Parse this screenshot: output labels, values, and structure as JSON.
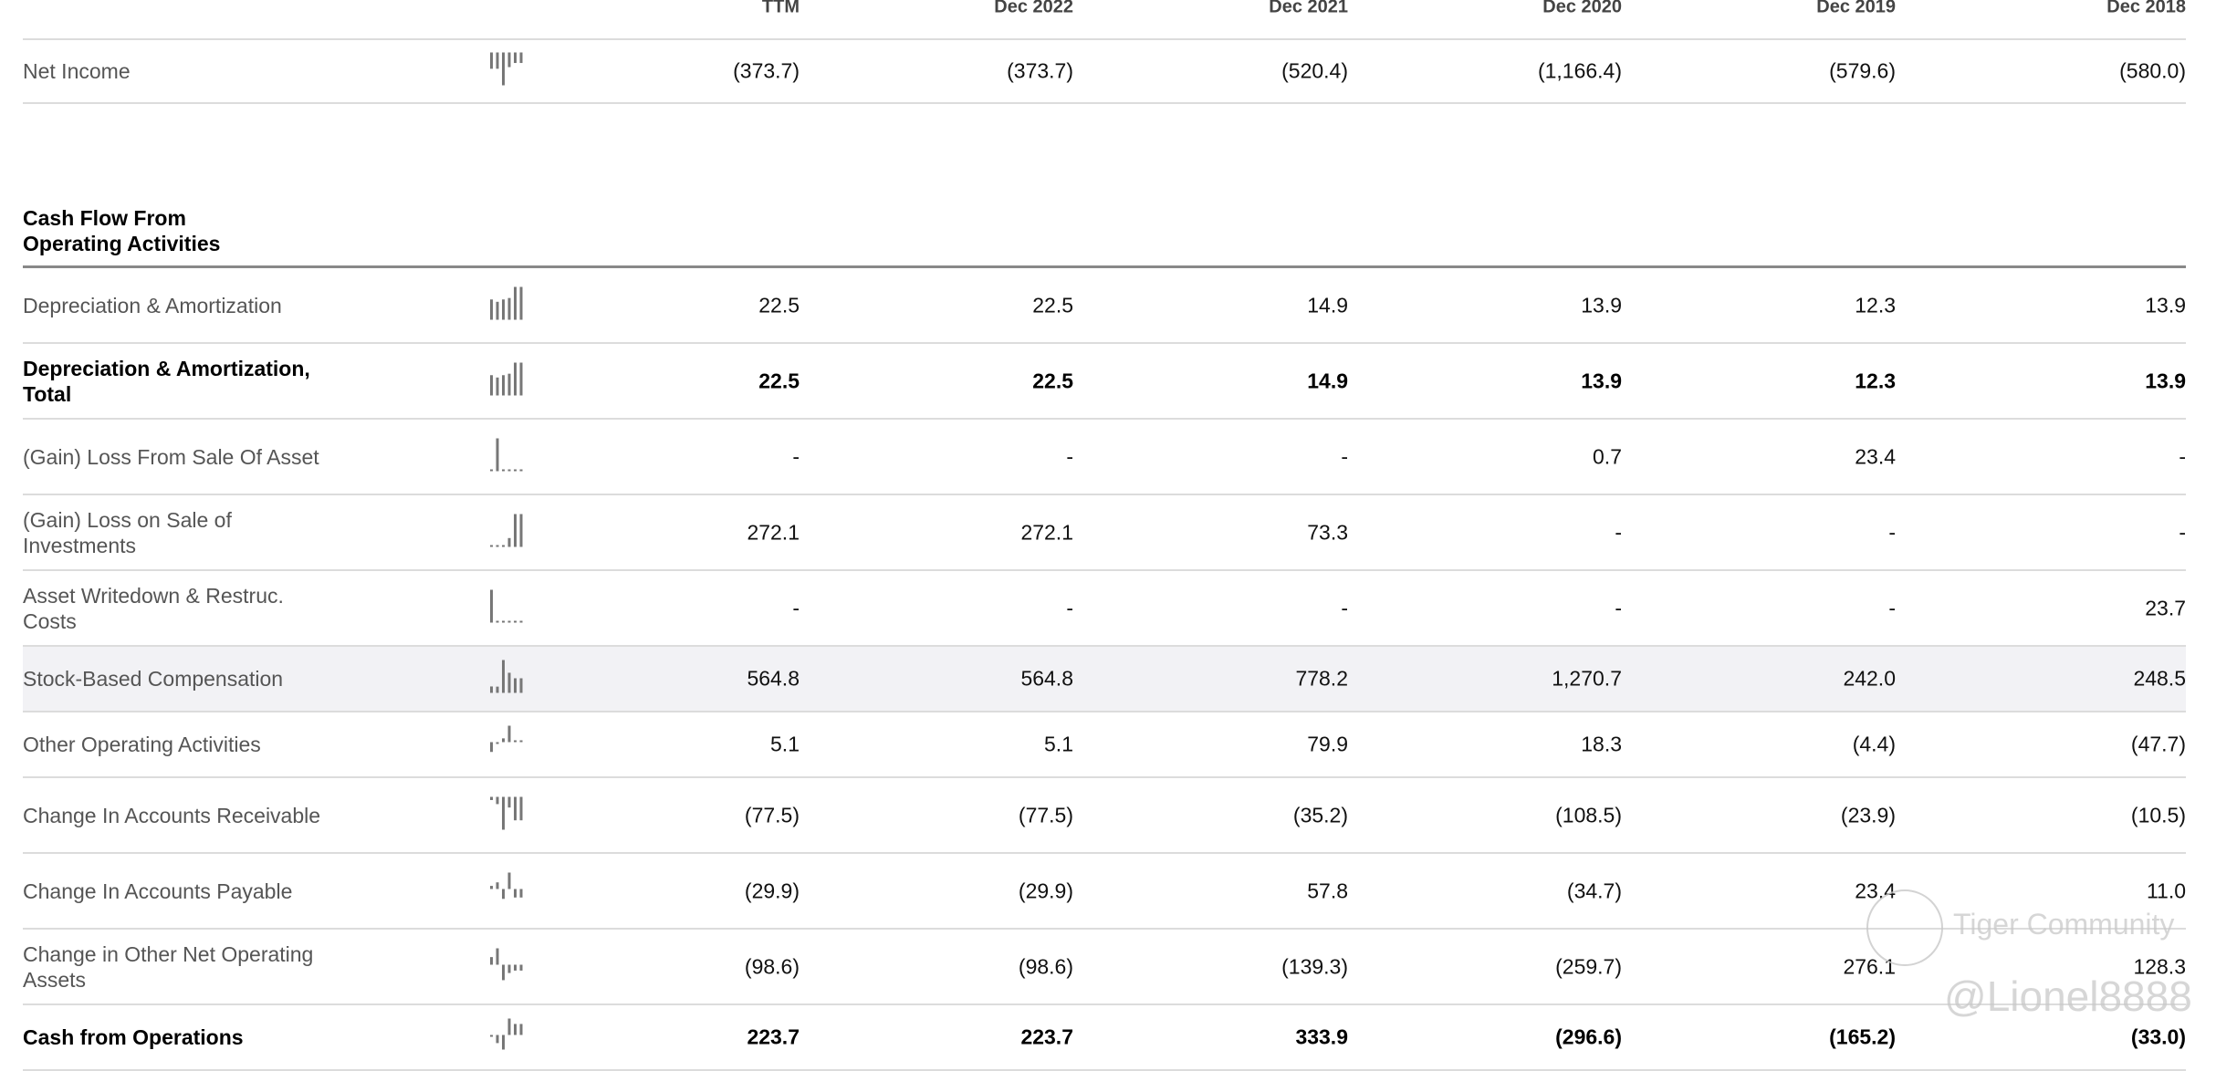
{
  "columns": [
    "TTM",
    "Dec 2022",
    "Dec 2021",
    "Dec 2020",
    "Dec 2019",
    "Dec 2018"
  ],
  "net_income": {
    "label": "Net Income",
    "values": [
      "(373.7)",
      "(373.7)",
      "(520.4)",
      "(1,166.4)",
      "(579.6)",
      "(580.0)"
    ]
  },
  "section_title": "Cash Flow From Operating Activities",
  "rows": [
    {
      "label": "Depreciation & Amortization",
      "bold": false,
      "values": [
        "22.5",
        "22.5",
        "14.9",
        "13.9",
        "12.3",
        "13.9"
      ]
    },
    {
      "label": "Depreciation & Amortization, Total",
      "bold": true,
      "values": [
        "22.5",
        "22.5",
        "14.9",
        "13.9",
        "12.3",
        "13.9"
      ]
    },
    {
      "label": "(Gain) Loss From Sale Of Asset",
      "bold": false,
      "values": [
        "-",
        "-",
        "-",
        "0.7",
        "23.4",
        "-"
      ]
    },
    {
      "label": "(Gain) Loss on Sale of Investments",
      "bold": false,
      "values": [
        "272.1",
        "272.1",
        "73.3",
        "-",
        "-",
        "-"
      ]
    },
    {
      "label": "Asset Writedown & Restruc. Costs",
      "bold": false,
      "values": [
        "-",
        "-",
        "-",
        "-",
        "-",
        "23.7"
      ]
    },
    {
      "label": "Stock-Based Compensation",
      "bold": false,
      "highlight": true,
      "values": [
        "564.8",
        "564.8",
        "778.2",
        "1,270.7",
        "242.0",
        "248.5"
      ]
    },
    {
      "label": "Other Operating Activities",
      "bold": false,
      "values": [
        "5.1",
        "5.1",
        "79.9",
        "18.3",
        "(4.4)",
        "(47.7)"
      ]
    },
    {
      "label": "Change In Accounts Receivable",
      "bold": false,
      "values": [
        "(77.5)",
        "(77.5)",
        "(35.2)",
        "(108.5)",
        "(23.9)",
        "(10.5)"
      ]
    },
    {
      "label": "Change In Accounts Payable",
      "bold": false,
      "values": [
        "(29.9)",
        "(29.9)",
        "57.8",
        "(34.7)",
        "23.4",
        "11.0"
      ]
    },
    {
      "label": "Change in Other Net Operating Assets",
      "bold": false,
      "values": [
        "(98.6)",
        "(98.6)",
        "(139.3)",
        "(259.7)",
        "276.1",
        "128.3"
      ]
    },
    {
      "label": "Cash from Operations",
      "bold": true,
      "values": [
        "223.7",
        "223.7",
        "333.9",
        "(296.6)",
        "(165.2)",
        "(33.0)"
      ]
    }
  ],
  "sparkline_color": "#777777",
  "highlight_color": "#f2f2f5",
  "watermark": {
    "line1": "Tiger Community",
    "line2": "@Lionel8888"
  }
}
